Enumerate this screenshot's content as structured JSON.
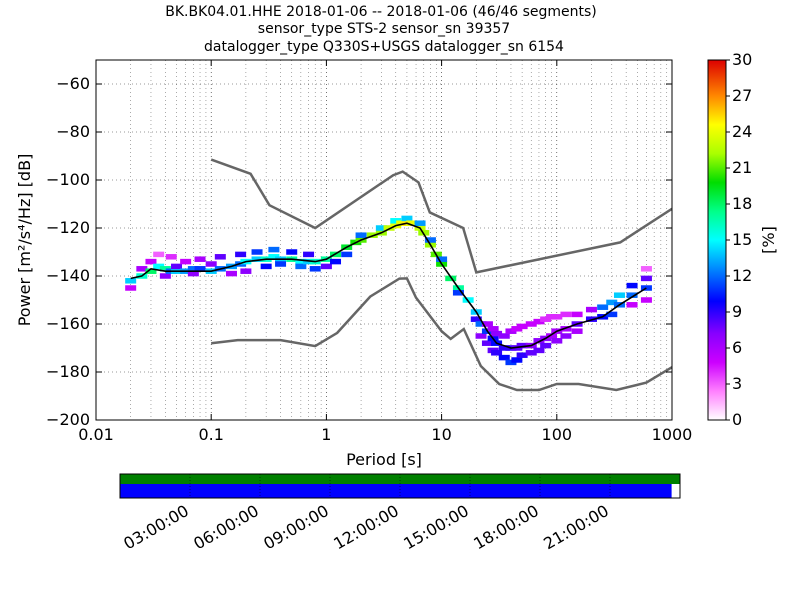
{
  "title": {
    "line1": "BK.BK04.01.HHE   2018-01-06 -- 2018-01-06  (46/46 segments)",
    "line2": "sensor_type STS-2 sensor_sn 39357",
    "line3": "datalogger_type Q330S+USGS datalogger_sn 6154"
  },
  "chart_data": {
    "type": "heatmap",
    "xlabel": "Period [s]",
    "ylabel": "Power [m²/s⁴/Hz] [dB]",
    "xscale": "log",
    "xlim": [
      0.01,
      1000
    ],
    "ylim": [
      -200,
      -50
    ],
    "xticks": [
      0.01,
      0.1,
      1,
      10,
      100,
      1000
    ],
    "xtick_labels": [
      "0.01",
      "0.1",
      "1",
      "10",
      "100",
      "1000"
    ],
    "yticks": [
      -200,
      -180,
      -160,
      -140,
      -120,
      -100,
      -80,
      -60
    ],
    "ytick_labels": [
      "−200",
      "−180",
      "−160",
      "−140",
      "−120",
      "−100",
      "−80",
      "−60"
    ],
    "grid": true,
    "colorbar": {
      "label": "[%]",
      "min": 0,
      "max": 30,
      "ticks": [
        0,
        3,
        6,
        9,
        12,
        15,
        18,
        21,
        24,
        27,
        30
      ]
    },
    "noise_models": [
      {
        "points": [
          [
            0.1,
            -91.5
          ],
          [
            0.22,
            -97.4
          ],
          [
            0.32,
            -110.5
          ],
          [
            0.8,
            -120
          ],
          [
            3.8,
            -98
          ],
          [
            4.6,
            -96.5
          ],
          [
            6.3,
            -101
          ],
          [
            7.9,
            -113.5
          ],
          [
            15.4,
            -120
          ],
          [
            20,
            -138.5
          ],
          [
            354.8,
            -126
          ],
          [
            1000,
            -112
          ]
        ]
      },
      {
        "points": [
          [
            0.1,
            -168
          ],
          [
            0.17,
            -166.7
          ],
          [
            0.4,
            -166.7
          ],
          [
            0.8,
            -169.2
          ],
          [
            1.24,
            -163.7
          ],
          [
            2.4,
            -148.6
          ],
          [
            4.3,
            -141.1
          ],
          [
            5.0,
            -141
          ],
          [
            6.0,
            -149
          ],
          [
            10.0,
            -163
          ],
          [
            12.0,
            -166.2
          ],
          [
            15.6,
            -162.1
          ],
          [
            21.9,
            -177.5
          ],
          [
            31.6,
            -185
          ],
          [
            45,
            -187.5
          ],
          [
            70,
            -187.5
          ],
          [
            100,
            -185
          ],
          [
            154.5,
            -185
          ],
          [
            328.2,
            -187.5
          ],
          [
            600,
            -184.4
          ],
          [
            1000,
            -178
          ]
        ]
      }
    ],
    "ppsd_mean": [
      [
        0.02,
        -141
      ],
      [
        0.025,
        -140
      ],
      [
        0.03,
        -137
      ],
      [
        0.04,
        -138
      ],
      [
        0.06,
        -138
      ],
      [
        0.1,
        -138
      ],
      [
        0.15,
        -136
      ],
      [
        0.2,
        -134
      ],
      [
        0.3,
        -133
      ],
      [
        0.5,
        -133
      ],
      [
        0.8,
        -134
      ],
      [
        1.0,
        -133
      ],
      [
        1.5,
        -128
      ],
      [
        2.0,
        -125
      ],
      [
        3.0,
        -122
      ],
      [
        4.0,
        -119
      ],
      [
        5.0,
        -118
      ],
      [
        6.5,
        -120
      ],
      [
        8.0,
        -127
      ],
      [
        10.0,
        -135
      ],
      [
        14.0,
        -145
      ],
      [
        20.0,
        -155
      ],
      [
        25.0,
        -163
      ],
      [
        30.0,
        -168
      ],
      [
        40.0,
        -170
      ],
      [
        60.0,
        -169
      ],
      [
        80.0,
        -166
      ],
      [
        100.0,
        -163
      ],
      [
        150.0,
        -160
      ],
      [
        250.0,
        -157
      ],
      [
        350.0,
        -152
      ],
      [
        600.0,
        -145
      ]
    ],
    "ppsd_density": [
      {
        "period": 0.02,
        "db": -142,
        "pct": 14
      },
      {
        "period": 0.02,
        "db": -145,
        "pct": 5
      },
      {
        "period": 0.025,
        "db": -140,
        "pct": 16
      },
      {
        "period": 0.025,
        "db": -137,
        "pct": 6
      },
      {
        "period": 0.03,
        "db": -138,
        "pct": 18
      },
      {
        "period": 0.03,
        "db": -134,
        "pct": 5
      },
      {
        "period": 0.035,
        "db": -136,
        "pct": 15
      },
      {
        "period": 0.035,
        "db": -131,
        "pct": 3
      },
      {
        "period": 0.04,
        "db": -137,
        "pct": 17
      },
      {
        "period": 0.04,
        "db": -140,
        "pct": 7
      },
      {
        "period": 0.045,
        "db": -138,
        "pct": 12
      },
      {
        "period": 0.045,
        "db": -132,
        "pct": 4
      },
      {
        "period": 0.05,
        "db": -138,
        "pct": 14
      },
      {
        "period": 0.05,
        "db": -136,
        "pct": 8
      },
      {
        "period": 0.06,
        "db": -138,
        "pct": 13
      },
      {
        "period": 0.06,
        "db": -134,
        "pct": 5
      },
      {
        "period": 0.07,
        "db": -137,
        "pct": 12
      },
      {
        "period": 0.07,
        "db": -139,
        "pct": 7
      },
      {
        "period": 0.08,
        "db": -137,
        "pct": 11
      },
      {
        "period": 0.08,
        "db": -133,
        "pct": 6
      },
      {
        "period": 0.1,
        "db": -138,
        "pct": 14
      },
      {
        "period": 0.1,
        "db": -135,
        "pct": 7
      },
      {
        "period": 0.12,
        "db": -137,
        "pct": 12
      },
      {
        "period": 0.12,
        "db": -132,
        "pct": 8
      },
      {
        "period": 0.15,
        "db": -136,
        "pct": 13
      },
      {
        "period": 0.15,
        "db": -139,
        "pct": 6
      },
      {
        "period": 0.18,
        "db": -135,
        "pct": 12
      },
      {
        "period": 0.18,
        "db": -131,
        "pct": 9
      },
      {
        "period": 0.2,
        "db": -134,
        "pct": 15
      },
      {
        "period": 0.2,
        "db": -138,
        "pct": 7
      },
      {
        "period": 0.25,
        "db": -133,
        "pct": 14
      },
      {
        "period": 0.25,
        "db": -130,
        "pct": 11
      },
      {
        "period": 0.3,
        "db": -133,
        "pct": 16
      },
      {
        "period": 0.3,
        "db": -136,
        "pct": 10
      },
      {
        "period": 0.35,
        "db": -132,
        "pct": 15
      },
      {
        "period": 0.35,
        "db": -129,
        "pct": 12
      },
      {
        "period": 0.4,
        "db": -133,
        "pct": 14
      },
      {
        "period": 0.4,
        "db": -135,
        "pct": 11
      },
      {
        "period": 0.5,
        "db": -133,
        "pct": 17
      },
      {
        "period": 0.5,
        "db": -130,
        "pct": 10
      },
      {
        "period": 0.6,
        "db": -134,
        "pct": 15
      },
      {
        "period": 0.6,
        "db": -136,
        "pct": 12
      },
      {
        "period": 0.7,
        "db": -134,
        "pct": 14
      },
      {
        "period": 0.7,
        "db": -131,
        "pct": 9
      },
      {
        "period": 0.8,
        "db": -134,
        "pct": 16
      },
      {
        "period": 0.8,
        "db": -137,
        "pct": 11
      },
      {
        "period": 1.0,
        "db": -133,
        "pct": 17
      },
      {
        "period": 1.0,
        "db": -136,
        "pct": 8
      },
      {
        "period": 1.2,
        "db": -131,
        "pct": 18
      },
      {
        "period": 1.2,
        "db": -134,
        "pct": 10
      },
      {
        "period": 1.5,
        "db": -128,
        "pct": 19
      },
      {
        "period": 1.5,
        "db": -131,
        "pct": 11
      },
      {
        "period": 1.8,
        "db": -126,
        "pct": 20
      },
      {
        "period": 2.0,
        "db": -125,
        "pct": 21
      },
      {
        "period": 2.0,
        "db": -123,
        "pct": 12
      },
      {
        "period": 2.5,
        "db": -123,
        "pct": 22
      },
      {
        "period": 3.0,
        "db": -122,
        "pct": 22
      },
      {
        "period": 3.0,
        "db": -120,
        "pct": 14
      },
      {
        "period": 3.5,
        "db": -120,
        "pct": 23
      },
      {
        "period": 4.0,
        "db": -119,
        "pct": 24
      },
      {
        "period": 4.0,
        "db": -117,
        "pct": 15
      },
      {
        "period": 4.5,
        "db": -118,
        "pct": 24
      },
      {
        "period": 5.0,
        "db": -118,
        "pct": 25
      },
      {
        "period": 5.0,
        "db": -116,
        "pct": 14
      },
      {
        "period": 5.5,
        "db": -118,
        "pct": 24
      },
      {
        "period": 6.5,
        "db": -120,
        "pct": 23
      },
      {
        "period": 6.5,
        "db": -118,
        "pct": 13
      },
      {
        "period": 7.0,
        "db": -122,
        "pct": 22
      },
      {
        "period": 8.0,
        "db": -127,
        "pct": 22
      },
      {
        "period": 8.0,
        "db": -125,
        "pct": 12
      },
      {
        "period": 9.0,
        "db": -131,
        "pct": 21
      },
      {
        "period": 10.0,
        "db": -135,
        "pct": 20
      },
      {
        "period": 10.0,
        "db": -133,
        "pct": 12
      },
      {
        "period": 12.0,
        "db": -141,
        "pct": 18
      },
      {
        "period": 14.0,
        "db": -145,
        "pct": 17
      },
      {
        "period": 14.0,
        "db": -147,
        "pct": 11
      },
      {
        "period": 17.0,
        "db": -150,
        "pct": 15
      },
      {
        "period": 20.0,
        "db": -155,
        "pct": 14
      },
      {
        "period": 20.0,
        "db": -158,
        "pct": 9
      },
      {
        "period": 22.0,
        "db": -160,
        "pct": 12
      },
      {
        "period": 22.0,
        "db": -165,
        "pct": 7
      },
      {
        "period": 25.0,
        "db": -163,
        "pct": 11
      },
      {
        "period": 25.0,
        "db": -168,
        "pct": 8
      },
      {
        "period": 25.0,
        "db": -160,
        "pct": 6
      },
      {
        "period": 28.0,
        "db": -166,
        "pct": 10
      },
      {
        "period": 28.0,
        "db": -171,
        "pct": 8
      },
      {
        "period": 28.0,
        "db": -162,
        "pct": 6
      },
      {
        "period": 30.0,
        "db": -168,
        "pct": 10
      },
      {
        "period": 30.0,
        "db": -172,
        "pct": 9
      },
      {
        "period": 30.0,
        "db": -164,
        "pct": 7
      },
      {
        "period": 35.0,
        "db": -170,
        "pct": 9
      },
      {
        "period": 35.0,
        "db": -174,
        "pct": 10
      },
      {
        "period": 35.0,
        "db": -165,
        "pct": 7
      },
      {
        "period": 40.0,
        "db": -170,
        "pct": 9
      },
      {
        "period": 40.0,
        "db": -176,
        "pct": 11
      },
      {
        "period": 40.0,
        "db": -163,
        "pct": 6
      },
      {
        "period": 45.0,
        "db": -170,
        "pct": 8
      },
      {
        "period": 45.0,
        "db": -175,
        "pct": 10
      },
      {
        "period": 45.0,
        "db": -162,
        "pct": 5
      },
      {
        "period": 50.0,
        "db": -169,
        "pct": 8
      },
      {
        "period": 50.0,
        "db": -173,
        "pct": 9
      },
      {
        "period": 50.0,
        "db": -161,
        "pct": 5
      },
      {
        "period": 60.0,
        "db": -169,
        "pct": 7
      },
      {
        "period": 60.0,
        "db": -172,
        "pct": 8
      },
      {
        "period": 60.0,
        "db": -160,
        "pct": 5
      },
      {
        "period": 70.0,
        "db": -167,
        "pct": 7
      },
      {
        "period": 70.0,
        "db": -171,
        "pct": 8
      },
      {
        "period": 70.0,
        "db": -159,
        "pct": 5
      },
      {
        "period": 80.0,
        "db": -166,
        "pct": 7
      },
      {
        "period": 80.0,
        "db": -169,
        "pct": 8
      },
      {
        "period": 80.0,
        "db": -158,
        "pct": 4
      },
      {
        "period": 90.0,
        "db": -165,
        "pct": 6
      },
      {
        "period": 90.0,
        "db": -157,
        "pct": 4
      },
      {
        "period": 100.0,
        "db": -163,
        "pct": 6
      },
      {
        "period": 100.0,
        "db": -167,
        "pct": 7
      },
      {
        "period": 100.0,
        "db": -157,
        "pct": 4
      },
      {
        "period": 120.0,
        "db": -162,
        "pct": 6
      },
      {
        "period": 120.0,
        "db": -165,
        "pct": 7
      },
      {
        "period": 120.0,
        "db": -156,
        "pct": 4
      },
      {
        "period": 150.0,
        "db": -160,
        "pct": 8
      },
      {
        "period": 150.0,
        "db": -156,
        "pct": 5
      },
      {
        "period": 150.0,
        "db": -163,
        "pct": 6
      },
      {
        "period": 200.0,
        "db": -158,
        "pct": 9
      },
      {
        "period": 200.0,
        "db": -154,
        "pct": 6
      },
      {
        "period": 250.0,
        "db": -157,
        "pct": 10
      },
      {
        "period": 250.0,
        "db": -153,
        "pct": 12
      },
      {
        "period": 300.0,
        "db": -156,
        "pct": 11
      },
      {
        "period": 300.0,
        "db": -151,
        "pct": 13
      },
      {
        "period": 350.0,
        "db": -152,
        "pct": 12
      },
      {
        "period": 350.0,
        "db": -148,
        "pct": 14
      },
      {
        "period": 450.0,
        "db": -148,
        "pct": 12
      },
      {
        "period": 450.0,
        "db": -144,
        "pct": 10
      },
      {
        "period": 450.0,
        "db": -152,
        "pct": 5
      },
      {
        "period": 600.0,
        "db": -145,
        "pct": 11
      },
      {
        "period": 600.0,
        "db": -141,
        "pct": 8
      },
      {
        "period": 600.0,
        "db": -150,
        "pct": 5
      },
      {
        "period": 600.0,
        "db": -137,
        "pct": 3
      }
    ]
  },
  "timeline": {
    "coverage_end": 0.985,
    "tick_labels": [
      "03:00:00",
      "06:00:00",
      "09:00:00",
      "12:00:00",
      "15:00:00",
      "18:00:00",
      "21:00:00"
    ],
    "tick_fractions": [
      0.125,
      0.25,
      0.375,
      0.5,
      0.625,
      0.75,
      0.875
    ]
  },
  "colors": {
    "noise_model": "#666666",
    "mean_line": "#000000",
    "timeline_top": "#008000",
    "timeline_coverage": "#0000ff"
  }
}
